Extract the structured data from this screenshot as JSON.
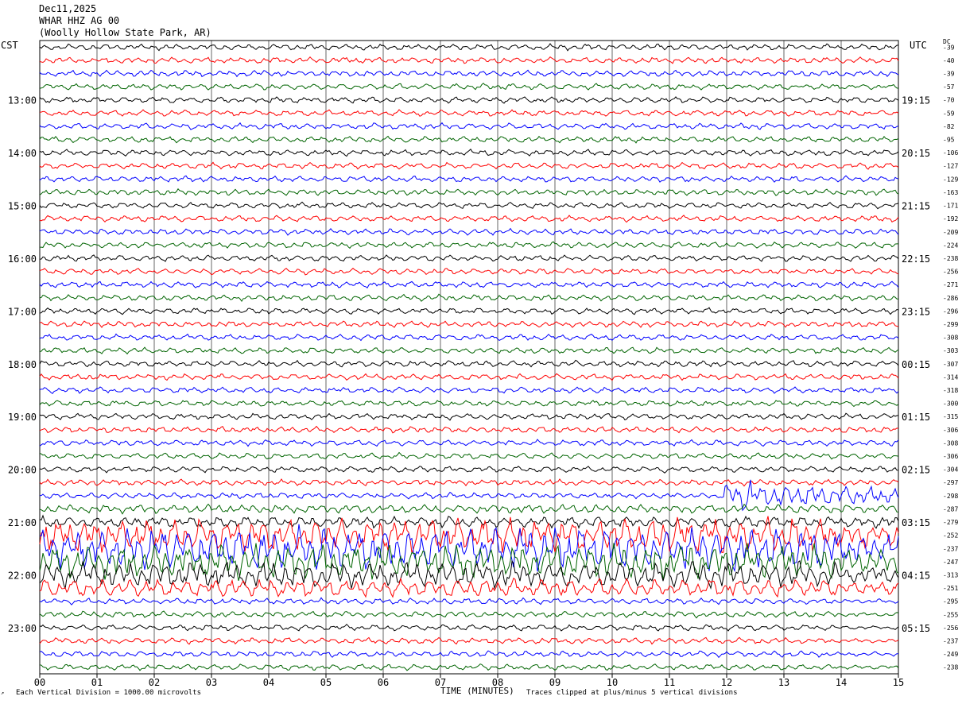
{
  "header": {
    "date": "Dec11,2025",
    "station": "WHAR HHZ AG 00",
    "location": "(Woolly Hollow State Park, AR)"
  },
  "left_timezone": "CST",
  "right_timezone": "UTC",
  "dc_label": "DC",
  "footer": {
    "scale_note": "Each Vertical Division = 1000.00 microvolts",
    "x_title": "TIME (MINUTES)",
    "clip_note": "Traces clipped at plus/minus 5 vertical divisions"
  },
  "colors": {
    "trace_cycle": [
      "#000000",
      "#ff0000",
      "#0000ff",
      "#006400"
    ],
    "grid": "#000000"
  },
  "chart_data": {
    "type": "line",
    "title": "",
    "xlabel": "TIME (MINUTES)",
    "xlim": [
      0,
      15
    ],
    "x_ticks": [
      "00",
      "01",
      "02",
      "03",
      "04",
      "05",
      "06",
      "07",
      "08",
      "09",
      "10",
      "11",
      "12",
      "13",
      "14",
      "15"
    ],
    "left_hour_labels": [
      "13:00",
      "14:00",
      "15:00",
      "16:00",
      "17:00",
      "18:00",
      "19:00",
      "20:00",
      "21:00",
      "22:00",
      "23:00"
    ],
    "right_hour_labels": [
      "19:15",
      "20:15",
      "21:15",
      "22:15",
      "23:15",
      "00:15",
      "01:15",
      "02:15",
      "03:15",
      "04:15",
      "05:15"
    ],
    "traces_per_hour": 4,
    "trace_count": 48,
    "dc_offsets": [
      -39,
      -40,
      -39,
      -57,
      -70,
      -59,
      -82,
      -95,
      -106,
      -127,
      -129,
      -163,
      -171,
      -192,
      -209,
      -224,
      -238,
      -256,
      -271,
      -286,
      -296,
      -299,
      -308,
      -303,
      -307,
      -314,
      -318,
      -300,
      -315,
      -306,
      -308,
      -306,
      -304,
      -297,
      -298,
      -287,
      -279,
      -252,
      -237,
      -247,
      -313,
      -251,
      -295,
      -255,
      -256,
      -237,
      -249,
      -238
    ],
    "events": [
      {
        "label": "",
        "trace_start": 35,
        "trace_end": 41,
        "minute_start": 0,
        "minute_end": 15
      }
    ]
  }
}
